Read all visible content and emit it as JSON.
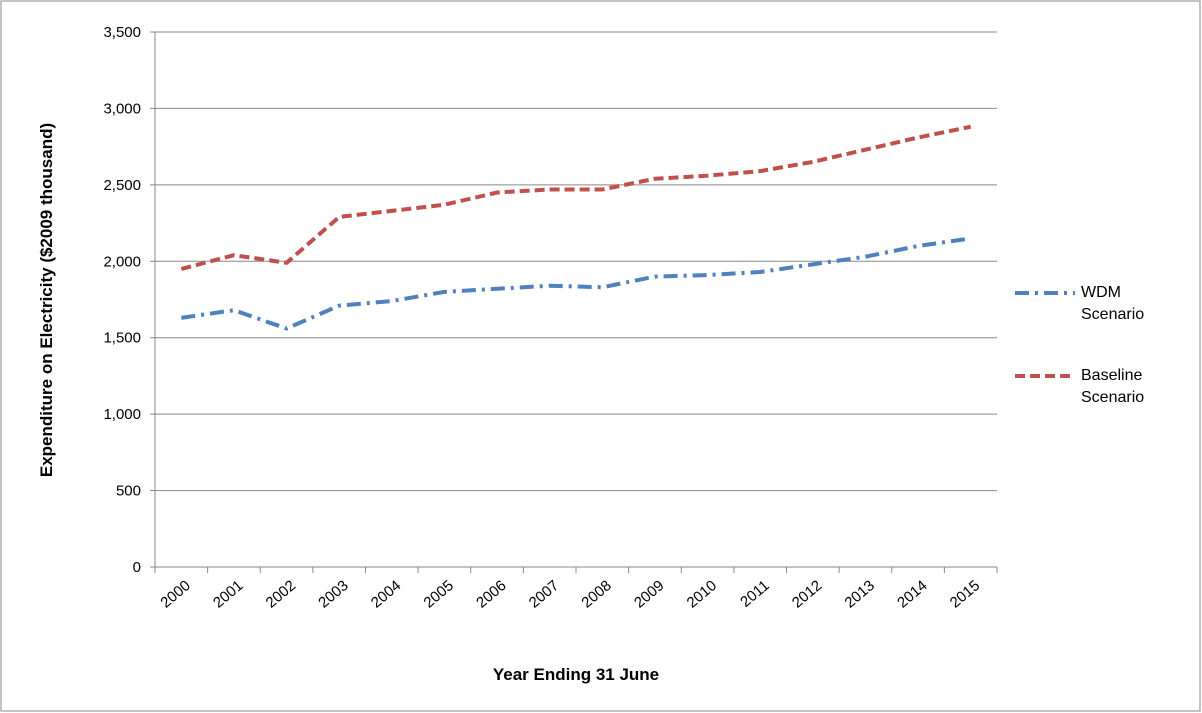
{
  "chart_data": {
    "type": "line",
    "x_label": "Year Ending 31 June",
    "y_label": "Expenditure on Electricity ($2009 thousand)",
    "categories": [
      "2000",
      "2001",
      "2002",
      "2003",
      "2004",
      "2005",
      "2006",
      "2007",
      "2008",
      "2009",
      "2010",
      "2011",
      "2012",
      "2013",
      "2014",
      "2015"
    ],
    "series": [
      {
        "name": "WDM Scenario",
        "color": "#4f81bd",
        "dash": "14 6 3 6",
        "values": [
          1630,
          1680,
          1560,
          1710,
          1740,
          1800,
          1820,
          1840,
          1830,
          1900,
          1910,
          1930,
          1980,
          2030,
          2100,
          2150
        ]
      },
      {
        "name": "Baseline Scenario",
        "color": "#c0504d",
        "dash": "10 5",
        "values": [
          1950,
          2040,
          1990,
          2290,
          2330,
          2370,
          2450,
          2470,
          2470,
          2540,
          2560,
          2590,
          2650,
          2730,
          2810,
          2880
        ]
      }
    ],
    "ylim": [
      0,
      3500
    ],
    "yticks": [
      0,
      {
        "value": 500,
        "label": "500"
      },
      {
        "value": 1000,
        "label": "1,000"
      },
      {
        "value": 1500,
        "label": "1,500"
      },
      {
        "value": 2000,
        "label": "2,000"
      },
      {
        "value": 2500,
        "label": "2,500"
      },
      {
        "value": 3000,
        "label": "3,000"
      },
      {
        "value": 3500,
        "label": "3,500"
      }
    ],
    "grid": true,
    "legend": "right"
  }
}
